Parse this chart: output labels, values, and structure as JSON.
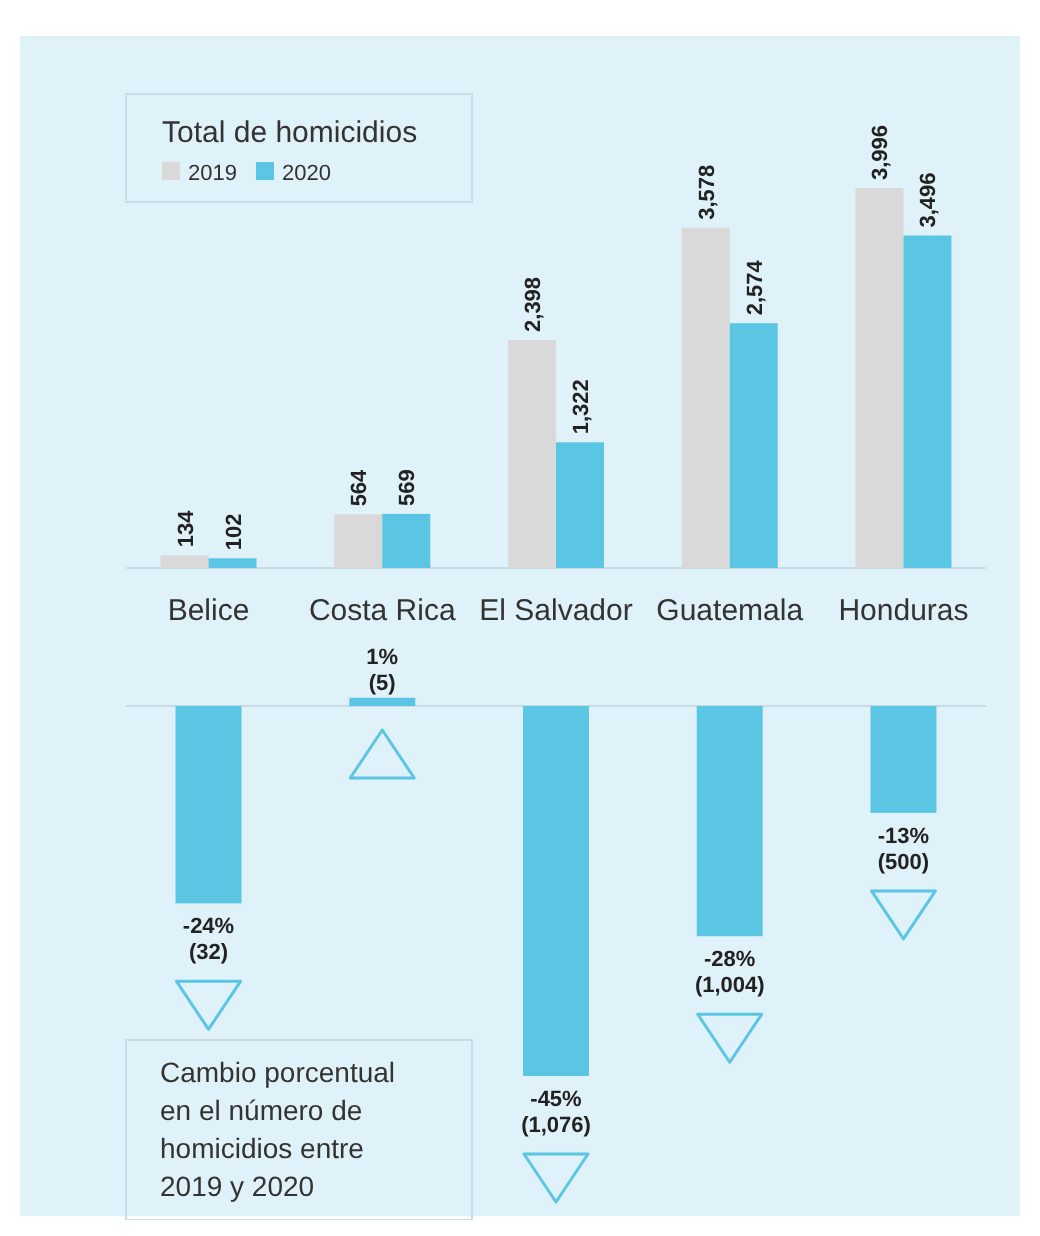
{
  "chart_data": [
    {
      "type": "bar",
      "legend_title": "Total de homicidios",
      "legend": "top left",
      "categories": [
        "Belice",
        "Costa Rica",
        "El Salvador",
        "Guatemala",
        "Honduras"
      ],
      "series": [
        {
          "name": "2019",
          "color": "#d9d9d9",
          "values": [
            134,
            564,
            2398,
            3578,
            3996
          ],
          "value_labels": [
            "134",
            "564",
            "2,398",
            "3,578",
            "3,996"
          ]
        },
        {
          "name": "2020",
          "color": "#5bc6e4",
          "values": [
            102,
            569,
            1322,
            2574,
            3496
          ],
          "value_labels": [
            "102",
            "569",
            "1,322",
            "2,574",
            "3,496"
          ]
        }
      ]
    },
    {
      "type": "bar",
      "title": "Cambio porcentual en el número de homicidios entre 2019 y 2020",
      "series": [
        {
          "color": "#5bc6e4",
          "values": [
            -24,
            1,
            -45,
            -28,
            -13
          ],
          "value_labels": [
            "-24% (32)",
            "1% (5)",
            "-45% (1,076)",
            "-28% (1,004)",
            "-13% (500)"
          ]
        }
      ]
    }
  ]
}
